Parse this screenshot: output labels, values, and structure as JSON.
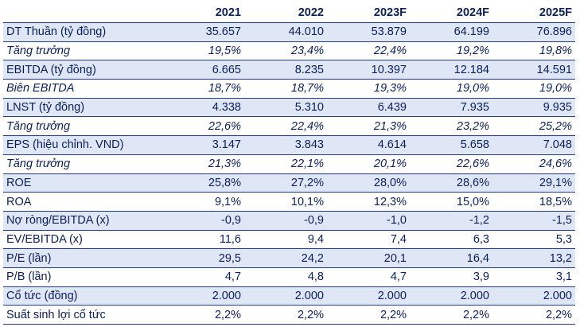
{
  "table": {
    "headers": [
      "",
      "2021",
      "2022",
      "2023F",
      "2024F",
      "2025F"
    ],
    "rows": [
      {
        "label": "DT Thuần (tỷ đồng)",
        "values": [
          "35.657",
          "44.010",
          "53.879",
          "64.199",
          "76.896"
        ],
        "shaded": true,
        "italic": false
      },
      {
        "label": "Tăng trưởng",
        "values": [
          "19,5%",
          "23,4%",
          "22,4%",
          "19,2%",
          "19,8%"
        ],
        "shaded": false,
        "italic": true
      },
      {
        "label": "EBITDA (tỷ đồng)",
        "values": [
          "6.665",
          "8.235",
          "10.397",
          "12.184",
          "14.591"
        ],
        "shaded": true,
        "italic": false
      },
      {
        "label": "Biên EBITDA",
        "values": [
          "18,7%",
          "18,7%",
          "19,3%",
          "19,0%",
          "19,0%"
        ],
        "shaded": false,
        "italic": true
      },
      {
        "label": "LNST (tỷ đồng)",
        "values": [
          "4.338",
          "5.310",
          "6.439",
          "7.935",
          "9.935"
        ],
        "shaded": true,
        "italic": false
      },
      {
        "label": "Tăng trưởng",
        "values": [
          "22,6%",
          "22,4%",
          "21,3%",
          "23,2%",
          "25,2%"
        ],
        "shaded": false,
        "italic": true
      },
      {
        "label": "EPS (hiệu chỉnh. VND)",
        "values": [
          "3.147",
          "3.843",
          "4.614",
          "5.658",
          "7.048"
        ],
        "shaded": true,
        "italic": false
      },
      {
        "label": "Tăng trưởng",
        "values": [
          "21,3%",
          "22,1%",
          "20,1%",
          "22,6%",
          "24,6%"
        ],
        "shaded": false,
        "italic": true
      },
      {
        "label": "ROE",
        "values": [
          "25,8%",
          "27,2%",
          "28,0%",
          "28,6%",
          "29,1%"
        ],
        "shaded": true,
        "italic": false
      },
      {
        "label": "ROA",
        "values": [
          "9,1%",
          "10,1%",
          "12,3%",
          "15,0%",
          "18,5%"
        ],
        "shaded": false,
        "italic": false
      },
      {
        "label": "Nợ ròng/EBITDA (x)",
        "values": [
          "-0,9",
          "-0,9",
          "-1,0",
          "-1,2",
          "-1,5"
        ],
        "shaded": true,
        "italic": false
      },
      {
        "label": "EV/EBITDA (x)",
        "values": [
          "11,6",
          "9,4",
          "7,4",
          "6,3",
          "5,3"
        ],
        "shaded": false,
        "italic": false
      },
      {
        "label": "P/E (lần)",
        "values": [
          "29,5",
          "24,2",
          "20,1",
          "16,4",
          "13,2"
        ],
        "shaded": true,
        "italic": false
      },
      {
        "label": "P/B (lần)",
        "values": [
          "4,7",
          "4,8",
          "4,7",
          "3,9",
          "3,1"
        ],
        "shaded": false,
        "italic": false
      },
      {
        "label": "Cổ tức (đồng)",
        "values": [
          "2.000",
          "2.000",
          "2.000",
          "2.000",
          "2.000"
        ],
        "shaded": true,
        "italic": false
      },
      {
        "label": "Suất sinh lợi cổ tức",
        "values": [
          "2,2%",
          "2,2%",
          "2,2%",
          "2,2%",
          "2,2%"
        ],
        "shaded": false,
        "italic": false
      }
    ]
  },
  "colors": {
    "text": "#0b1f5c",
    "shade": "#dfe6f5",
    "rule": "#1f3a93"
  }
}
